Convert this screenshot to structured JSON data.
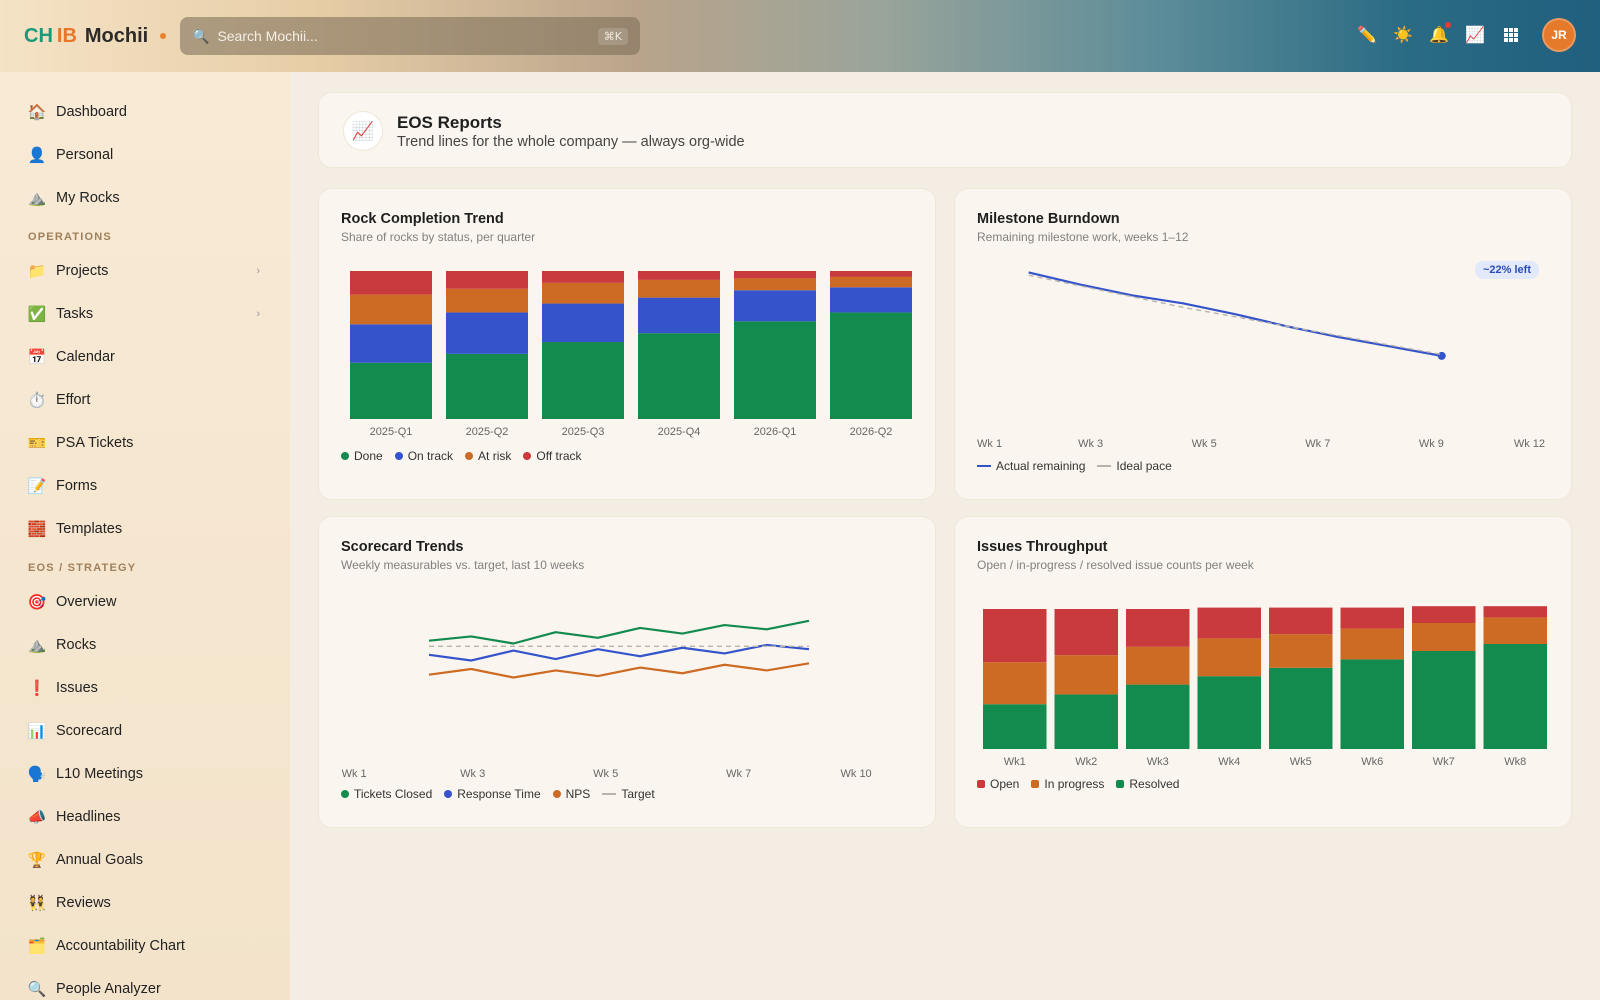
{
  "brand": {
    "part1": "CH",
    "part2": "IB",
    "part3": "Mochii"
  },
  "search": {
    "placeholder": "Search Mochii...",
    "shortcut": "⌘K"
  },
  "topbar": {
    "icons": [
      "pencil-icon",
      "sun-icon",
      "bell-icon",
      "chart-icon",
      "grid-icon"
    ],
    "avatar": "JR"
  },
  "sidebar": {
    "top_items": [
      {
        "label": "Dashboard",
        "icon": "🏠"
      },
      {
        "label": "Personal",
        "icon": "👤"
      },
      {
        "label": "My Rocks",
        "icon": "⛰️"
      }
    ],
    "operations_label": "OPERATIONS",
    "operations_items": [
      {
        "label": "Projects",
        "icon": "📁"
      },
      {
        "label": "Tasks",
        "icon": "✅"
      },
      {
        "label": "Calendar",
        "icon": "📅"
      },
      {
        "label": "Effort",
        "icon": "⏱️"
      },
      {
        "label": "PSA Tickets",
        "icon": "🎫"
      },
      {
        "label": "Forms",
        "icon": "📝"
      },
      {
        "label": "Templates",
        "icon": "🧱"
      }
    ],
    "eos_label": "EOS / STRATEGY",
    "eos_items": [
      {
        "label": "Overview",
        "icon": "🎯"
      },
      {
        "label": "Rocks",
        "icon": "⛰️"
      },
      {
        "label": "Issues",
        "icon": "❗"
      },
      {
        "label": "Scorecard",
        "icon": "📊"
      },
      {
        "label": "L10 Meetings",
        "icon": "🗣️"
      },
      {
        "label": "Headlines",
        "icon": "📣"
      },
      {
        "label": "Annual Goals",
        "icon": "🏆"
      },
      {
        "label": "Reviews",
        "icon": "👯"
      },
      {
        "label": "Accountability Chart",
        "icon": "🗂️"
      },
      {
        "label": "People Analyzer",
        "icon": "🔍"
      }
    ]
  },
  "header": {
    "icon": "📈",
    "title": "EOS Reports",
    "subtitle": "Trend lines for the whole company — always org-wide"
  },
  "colors": {
    "green": "#138a4e",
    "blue": "#3554cb",
    "orange": "#cd6a23",
    "red": "#c93a3c",
    "target": "#b9b3aa"
  },
  "chart_data": [
    {
      "id": "rock_completion",
      "type": "bar",
      "stacked": true,
      "title": "Rock Completion Trend",
      "subtitle": "Share of rocks by status, per quarter",
      "categories": [
        "2025-Q1",
        "2025-Q2",
        "2025-Q3",
        "2025-Q4",
        "2026-Q1",
        "2026-Q2"
      ],
      "series": [
        {
          "name": "Done",
          "values": [
            38,
            44,
            52,
            58,
            66,
            72
          ]
        },
        {
          "name": "On track",
          "values": [
            26,
            28,
            26,
            24,
            21,
            17
          ]
        },
        {
          "name": "At risk",
          "values": [
            20,
            16,
            14,
            12,
            8,
            7
          ]
        },
        {
          "name": "Off track",
          "values": [
            16,
            12,
            8,
            6,
            5,
            4
          ]
        }
      ],
      "ylim": [
        0,
        100
      ]
    },
    {
      "id": "milestone_burndown",
      "type": "line",
      "title": "Milestone Burndown",
      "subtitle": "Remaining milestone work, weeks 1–12",
      "x_ticks": [
        "Wk 1",
        "Wk 3",
        "Wk 5",
        "Wk 7",
        "Wk 9",
        "Wk 12"
      ],
      "x": [
        2,
        3,
        4,
        5,
        6,
        7,
        8,
        9,
        10
      ],
      "series": [
        {
          "name": "Actual remaining",
          "values": [
            100,
            91,
            83,
            77,
            69,
            60,
            52,
            45,
            38
          ]
        },
        {
          "name": "Ideal pace",
          "values": [
            98,
            90,
            82,
            74,
            67,
            60,
            53,
            46,
            39
          ]
        }
      ],
      "ylim": [
        0,
        110
      ],
      "annotation": "~22% left"
    },
    {
      "id": "scorecard_trends",
      "type": "line",
      "title": "Scorecard Trends",
      "subtitle": "Weekly measurables vs. target, last 10 weeks",
      "x_ticks": [
        "Wk 1",
        "Wk 3",
        "Wk 5",
        "Wk 7",
        "Wk 10"
      ],
      "x": [
        1,
        2,
        3,
        4,
        5,
        6,
        7,
        8,
        9,
        10
      ],
      "series": [
        {
          "name": "Tickets Closed",
          "values": [
            68,
            71,
            66,
            74,
            70,
            77,
            73,
            79,
            76,
            82
          ]
        },
        {
          "name": "Response Time",
          "values": [
            58,
            54,
            61,
            55,
            62,
            57,
            63,
            59,
            65,
            62
          ]
        },
        {
          "name": "NPS",
          "values": [
            44,
            48,
            42,
            47,
            43,
            49,
            45,
            51,
            47,
            52
          ]
        },
        {
          "name": "Target",
          "values": [
            64,
            64,
            64,
            64,
            64,
            64,
            64,
            64,
            64,
            64
          ]
        }
      ],
      "ylim": [
        0,
        120
      ]
    },
    {
      "id": "issues_throughput",
      "type": "bar",
      "stacked": true,
      "title": "Issues Throughput",
      "subtitle": "Open / in-progress / resolved issue counts per week",
      "categories": [
        "Wk1",
        "Wk2",
        "Wk3",
        "Wk4",
        "Wk5",
        "Wk6",
        "Wk7",
        "Wk8"
      ],
      "series": [
        {
          "name": "Resolved",
          "values": [
            32,
            39,
            46,
            52,
            58,
            64,
            70,
            75
          ]
        },
        {
          "name": "In progress",
          "values": [
            30,
            28,
            27,
            27,
            24,
            22,
            20,
            19
          ]
        },
        {
          "name": "Open",
          "values": [
            38,
            33,
            27,
            22,
            19,
            15,
            12,
            8
          ]
        }
      ],
      "ylim": [
        0,
        100
      ]
    }
  ]
}
